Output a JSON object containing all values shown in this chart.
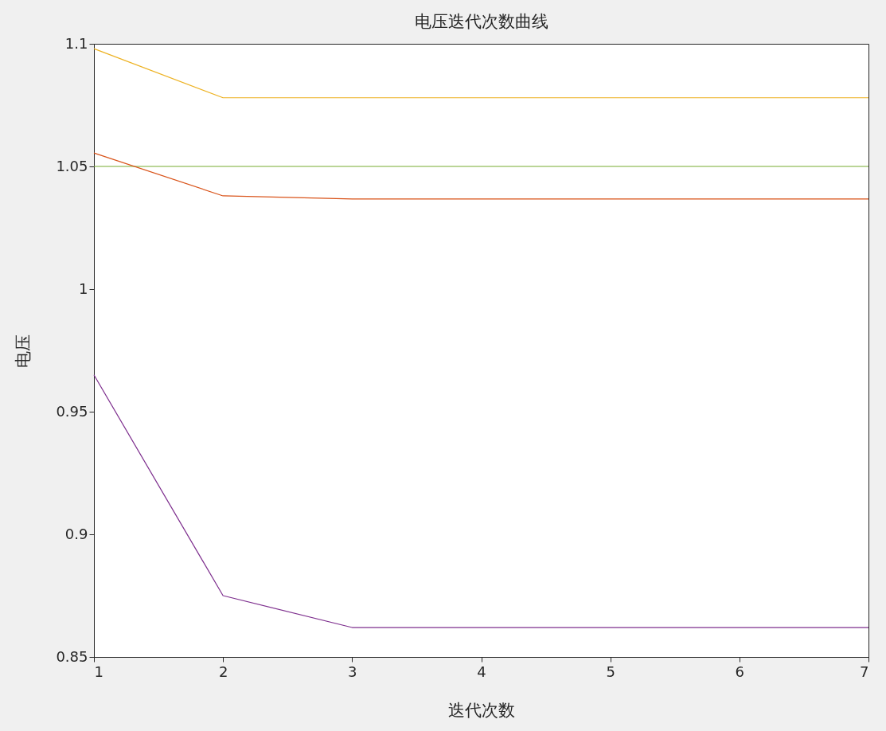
{
  "chart_data": {
    "type": "line",
    "title": "电压迭代次数曲线",
    "xlabel": "迭代次数",
    "ylabel": "电压",
    "x": [
      1,
      2,
      3,
      4,
      5,
      6,
      7
    ],
    "series": [
      {
        "color": "#edb120",
        "values": [
          1.098,
          1.078,
          1.078,
          1.078,
          1.078,
          1.078,
          1.078
        ]
      },
      {
        "color": "#77ac30",
        "values": [
          1.05,
          1.05,
          1.05,
          1.05,
          1.05,
          1.05,
          1.05
        ]
      },
      {
        "color": "#d95319",
        "values": [
          1.0555,
          1.038,
          1.0367,
          1.0367,
          1.0367,
          1.0367,
          1.0367
        ]
      },
      {
        "color": "#7e2f8e",
        "values": [
          0.965,
          0.875,
          0.862,
          0.862,
          0.862,
          0.862,
          0.862
        ]
      }
    ],
    "xlim": [
      1,
      7
    ],
    "xticks": [
      1,
      2,
      3,
      4,
      5,
      6,
      7
    ],
    "ylim": [
      0.85,
      1.1
    ],
    "yticks": [
      0.85,
      0.9,
      0.95,
      1,
      1.05,
      1.1
    ]
  }
}
